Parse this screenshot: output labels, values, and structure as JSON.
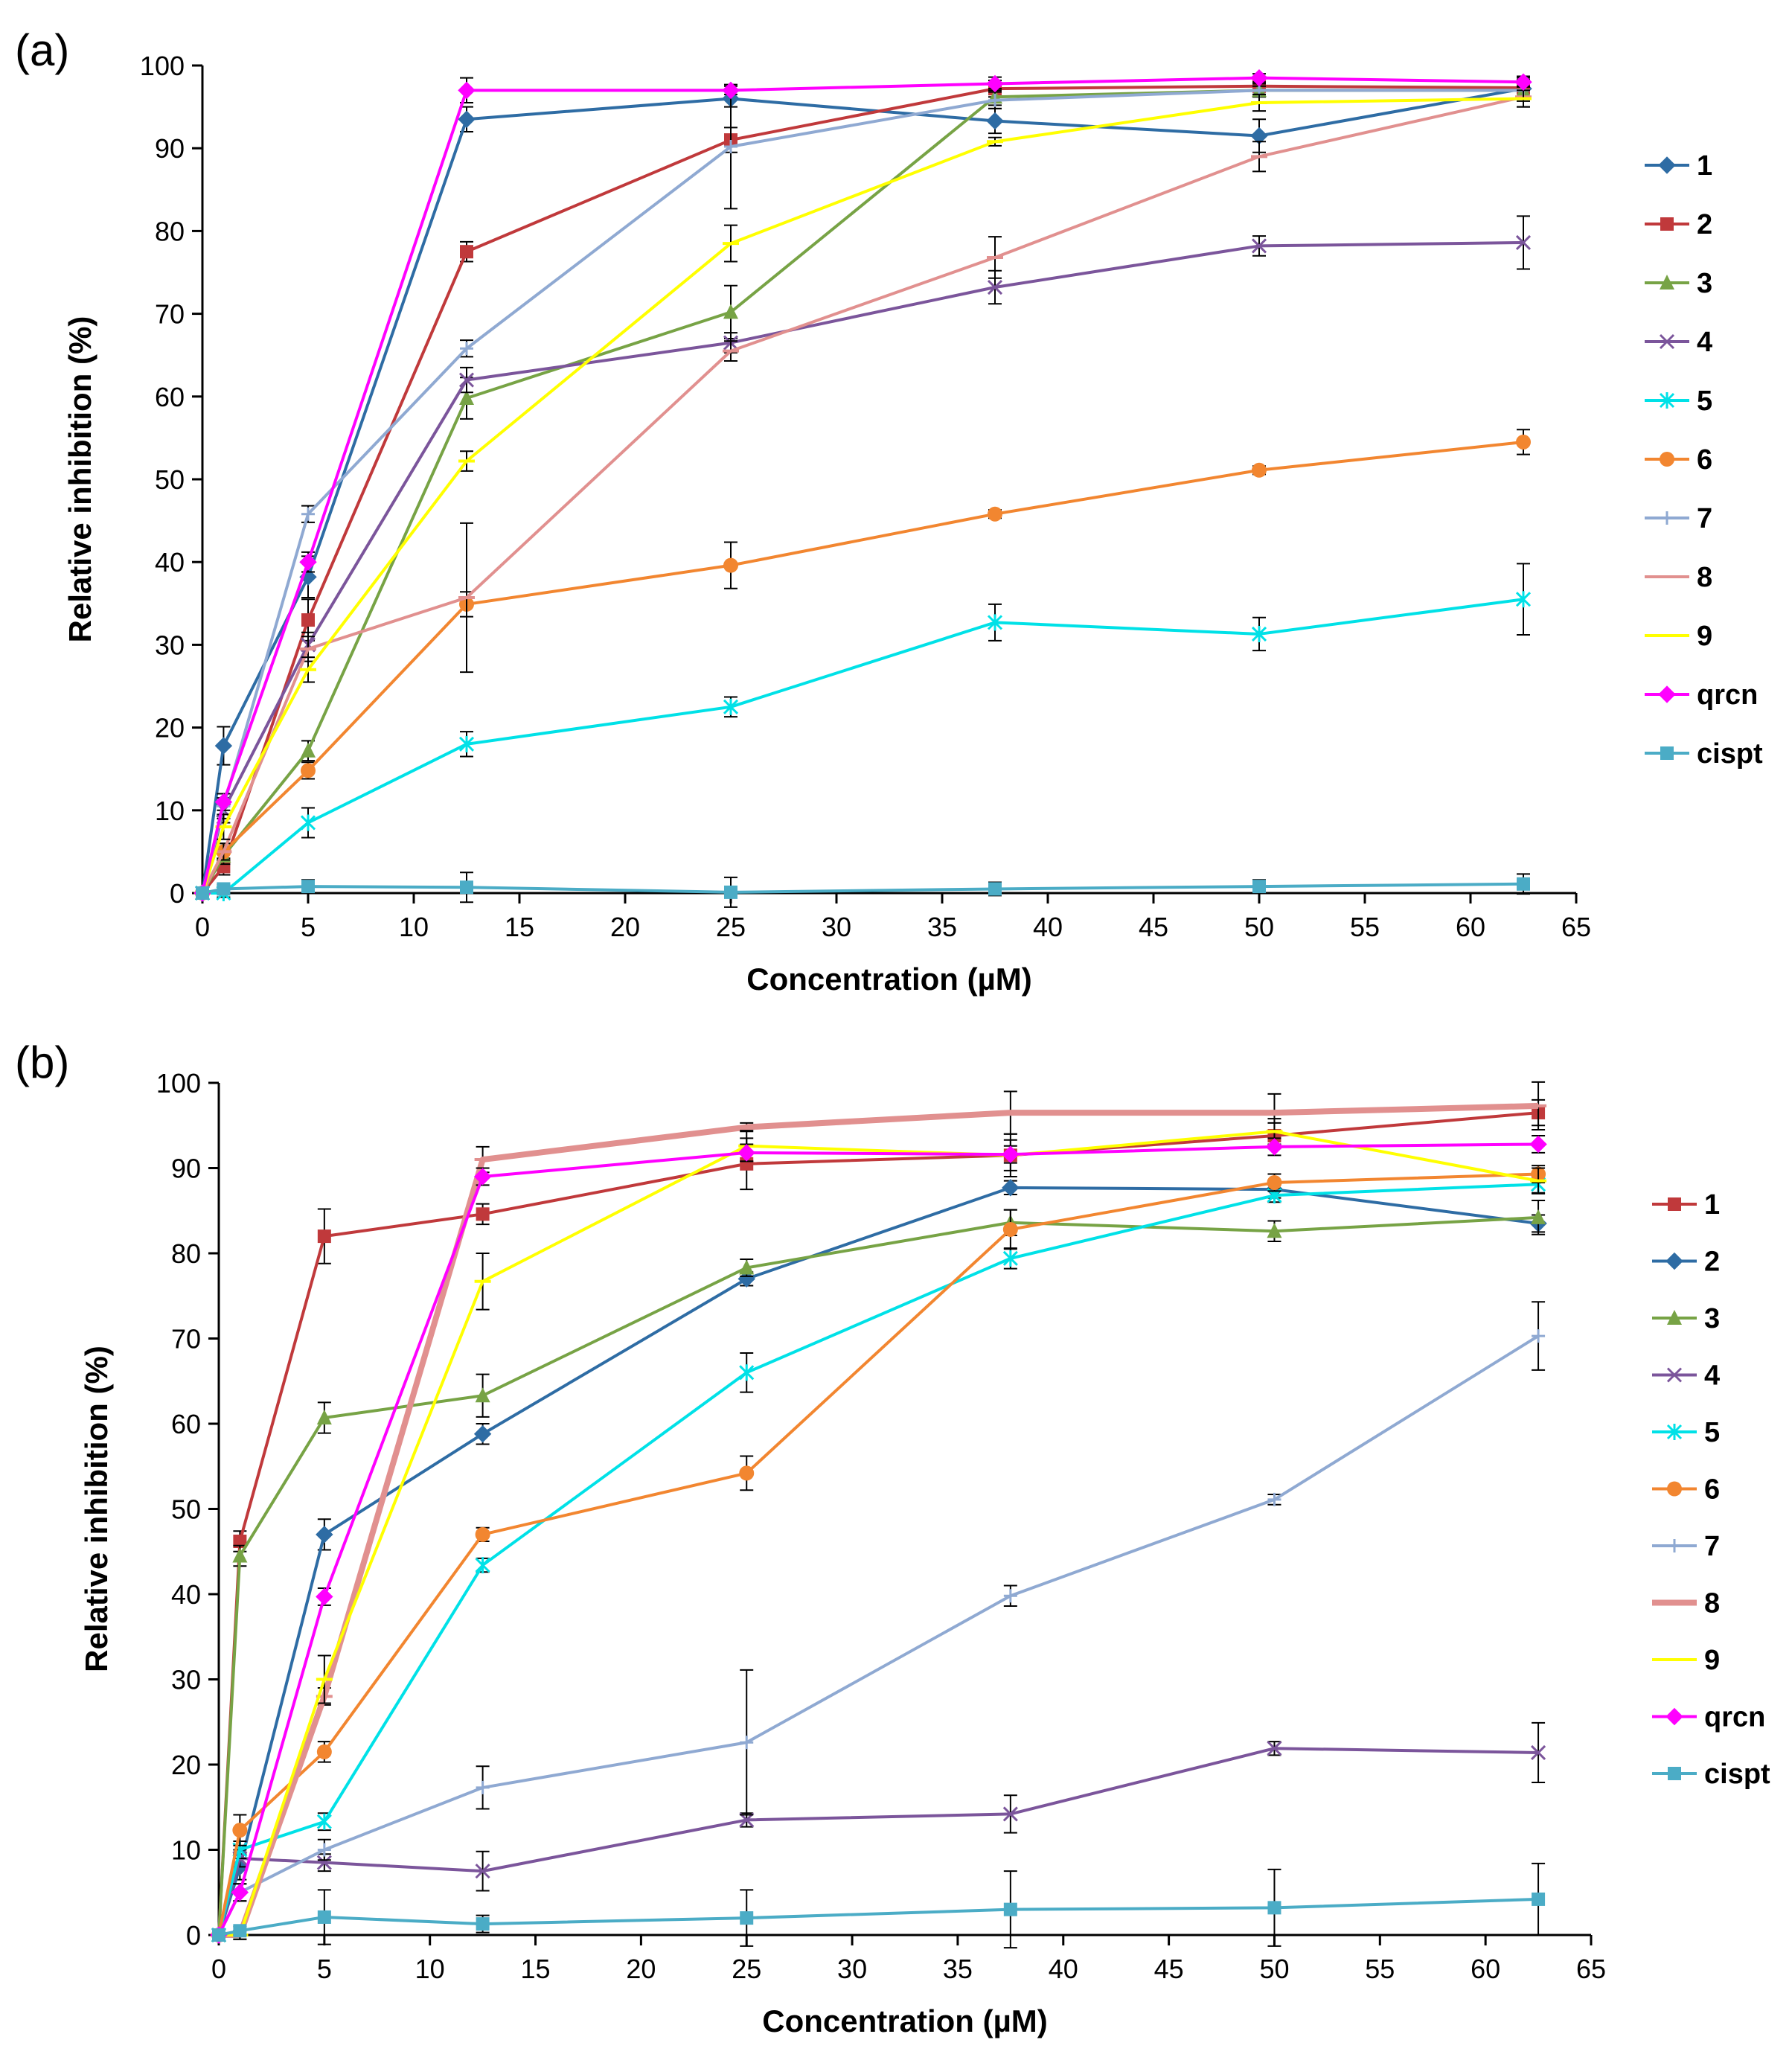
{
  "chart_data": [
    {
      "type": "line",
      "panel_label": "(a)",
      "xlabel": "Concentration (µM)",
      "ylabel": "Relative inhibition (%)",
      "xlim": [
        0,
        65
      ],
      "ylim": [
        0,
        100
      ],
      "xticks": [
        "0",
        "5",
        "10",
        "15",
        "20",
        "25",
        "30",
        "35",
        "40",
        "45",
        "50",
        "55",
        "60",
        "65"
      ],
      "yticks": [
        "0",
        "10",
        "20",
        "30",
        "40",
        "50",
        "60",
        "70",
        "80",
        "90",
        "100"
      ],
      "legend_position": "right",
      "x": [
        0,
        1,
        5,
        12.5,
        25,
        37.5,
        50,
        62.5
      ],
      "series": [
        {
          "name": "1",
          "color": "#2e6ca4",
          "marker": "diamond",
          "values": [
            0,
            17.8,
            38.2,
            93.5,
            96,
            93.3,
            91.5,
            97.2
          ],
          "errors": [
            0,
            2.3,
            2.5,
            1.5,
            1.0,
            1.5,
            2.0,
            1.5
          ]
        },
        {
          "name": "2",
          "color": "#c0393b",
          "marker": "square",
          "values": [
            0,
            3.2,
            33,
            77.5,
            91,
            97.2,
            97.5,
            97.3
          ],
          "errors": [
            0,
            1.0,
            2.5,
            1.2,
            1.5,
            1.0,
            0.5,
            1.0
          ]
        },
        {
          "name": "3",
          "color": "#77a345",
          "marker": "triangle",
          "values": [
            0,
            4.5,
            17.2,
            59.8,
            70.2,
            96.2,
            97,
            97
          ],
          "errors": [
            0,
            1.0,
            1.2,
            2.5,
            3.2,
            1.0,
            0.8,
            1.0
          ]
        },
        {
          "name": "4",
          "color": "#7b559b",
          "marker": "x",
          "values": [
            0,
            10,
            30,
            62,
            66.5,
            73.2,
            78.2,
            78.6
          ],
          "errors": [
            0,
            1.5,
            1.5,
            1.5,
            1.2,
            2.0,
            1.2,
            3.2
          ]
        },
        {
          "name": "5",
          "color": "#00e1e7",
          "marker": "star",
          "values": [
            0,
            0,
            8.5,
            18,
            22.5,
            32.7,
            31.3,
            35.5
          ],
          "errors": [
            0,
            0.5,
            1.8,
            1.5,
            1.2,
            2.2,
            2.0,
            4.3
          ]
        },
        {
          "name": "6",
          "color": "#f28630",
          "marker": "circle",
          "values": [
            0,
            5,
            14.8,
            34.9,
            39.6,
            45.8,
            51.1,
            54.5
          ],
          "errors": [
            0,
            1.0,
            1.0,
            1.5,
            2.8,
            0.5,
            0.5,
            1.5
          ]
        },
        {
          "name": "7",
          "color": "#8fa9d2",
          "marker": "plus",
          "values": [
            0,
            10.5,
            45.8,
            65.8,
            90.2,
            95.8,
            97,
            97
          ],
          "errors": [
            0,
            1.5,
            1.0,
            1.0,
            7.5,
            1.0,
            0.5,
            1.0
          ]
        },
        {
          "name": "8",
          "color": "#e1908f",
          "marker": "dash",
          "values": [
            0,
            5,
            29.5,
            35.7,
            65.5,
            76.8,
            89,
            96.2
          ],
          "errors": [
            0,
            1.0,
            1.5,
            9.0,
            1.2,
            2.5,
            1.8,
            1.2
          ]
        },
        {
          "name": "9",
          "color": "#ffff00",
          "marker": "dash",
          "values": [
            0,
            8,
            27,
            52.2,
            78.5,
            90.8,
            95.5,
            96
          ],
          "errors": [
            0,
            1.5,
            1.5,
            1.2,
            2.2,
            0.5,
            1.0,
            1.0
          ]
        },
        {
          "name": "qrcn",
          "color": "#ff00ff",
          "marker": "diamond",
          "values": [
            0,
            11,
            40,
            97,
            97,
            97.8,
            98.5,
            98
          ],
          "errors": [
            0,
            1.0,
            1.2,
            1.5,
            0.5,
            0.8,
            0.5,
            0.5
          ]
        },
        {
          "name": "cispt",
          "color": "#4bacc6",
          "marker": "square",
          "values": [
            0,
            0.5,
            0.8,
            0.7,
            0.1,
            0.5,
            0.8,
            1.1
          ],
          "errors": [
            0,
            0.5,
            0.8,
            1.8,
            1.8,
            0.8,
            0.8,
            1.2
          ]
        }
      ]
    },
    {
      "type": "line",
      "panel_label": "(b)",
      "xlabel": "Concentration (µM)",
      "ylabel": "Relative inhibition (%)",
      "xlim": [
        0,
        65
      ],
      "ylim": [
        0,
        100
      ],
      "xticks": [
        "0",
        "5",
        "10",
        "15",
        "20",
        "25",
        "30",
        "35",
        "40",
        "45",
        "50",
        "55",
        "60",
        "65"
      ],
      "yticks": [
        "0",
        "10",
        "20",
        "30",
        "40",
        "50",
        "60",
        "70",
        "80",
        "90",
        "100"
      ],
      "legend_position": "right",
      "x": [
        0,
        1,
        5,
        12.5,
        25,
        37.5,
        50,
        62.5
      ],
      "series": [
        {
          "name": "1",
          "color": "#c0393b",
          "marker": "square",
          "values": [
            0,
            46.2,
            82,
            84.6,
            90.5,
            91.5,
            93.8,
            96.5
          ],
          "errors": [
            0,
            1.2,
            3.2,
            1.2,
            3.0,
            2.5,
            1.5,
            1.5
          ]
        },
        {
          "name": "2",
          "color": "#2e6ca4",
          "marker": "diamond",
          "values": [
            0,
            8,
            47,
            58.8,
            77,
            87.7,
            87.5,
            83.5
          ],
          "errors": [
            0,
            1.5,
            1.8,
            1.2,
            0.8,
            0.8,
            1.0,
            1.0
          ]
        },
        {
          "name": "3",
          "color": "#77a345",
          "marker": "triangle",
          "values": [
            0,
            44.5,
            60.7,
            63.3,
            78.3,
            83.6,
            82.6,
            84.2
          ],
          "errors": [
            0,
            1.2,
            1.8,
            2.5,
            1.0,
            1.5,
            1.2,
            2.0
          ]
        },
        {
          "name": "4",
          "color": "#7b559b",
          "marker": "x",
          "values": [
            0,
            9,
            8.5,
            7.5,
            13.5,
            14.2,
            21.9,
            21.4
          ],
          "errors": [
            0,
            1.0,
            1.0,
            2.3,
            0.8,
            2.2,
            0.8,
            3.5
          ]
        },
        {
          "name": "5",
          "color": "#00e1e7",
          "marker": "star",
          "values": [
            0,
            10,
            13.3,
            43.4,
            66,
            79.4,
            86.8,
            88.1
          ],
          "errors": [
            0,
            1.0,
            1.0,
            0.8,
            2.3,
            1.2,
            0.8,
            1.0
          ]
        },
        {
          "name": "6",
          "color": "#f28630",
          "marker": "circle",
          "values": [
            0,
            12.3,
            21.5,
            47,
            54.2,
            82.8,
            88.3,
            89.3
          ],
          "errors": [
            0,
            1.8,
            1.2,
            0.8,
            2.0,
            2.3,
            1.0,
            1.0
          ]
        },
        {
          "name": "7",
          "color": "#8fa9d2",
          "marker": "plus",
          "values": [
            0,
            5,
            10,
            17.3,
            22.6,
            39.8,
            51.1,
            70.3
          ],
          "errors": [
            0,
            1.0,
            1.2,
            2.5,
            8.5,
            1.2,
            0.6,
            4.0
          ]
        },
        {
          "name": "8",
          "color": "#e1908f",
          "marker": "dash",
          "values": [
            0,
            0,
            28,
            91,
            94.8,
            96.5,
            96.5,
            97.3
          ],
          "errors": [
            0,
            0.5,
            1.0,
            1.5,
            0.5,
            2.5,
            2.2,
            2.8
          ]
        },
        {
          "name": "9",
          "color": "#ffff00",
          "marker": "dash",
          "values": [
            0,
            0,
            30,
            76.7,
            92.6,
            91.5,
            94.3,
            88.5
          ],
          "errors": [
            0,
            0.5,
            2.8,
            3.3,
            1.8,
            1.8,
            1.5,
            1.5
          ]
        },
        {
          "name": "qrcn",
          "color": "#ff00ff",
          "marker": "diamond",
          "values": [
            0,
            5,
            39.7,
            89,
            91.8,
            91.6,
            92.5,
            92.8
          ],
          "errors": [
            0,
            1.0,
            1.0,
            1.0,
            1.0,
            1.0,
            1.0,
            1.0
          ]
        },
        {
          "name": "cispt",
          "color": "#4bacc6",
          "marker": "square",
          "values": [
            0,
            0.5,
            2.1,
            1.3,
            2,
            3,
            3.2,
            4.2
          ],
          "errors": [
            0,
            0.5,
            3.2,
            1.0,
            3.3,
            4.5,
            4.5,
            4.2
          ]
        }
      ]
    }
  ]
}
